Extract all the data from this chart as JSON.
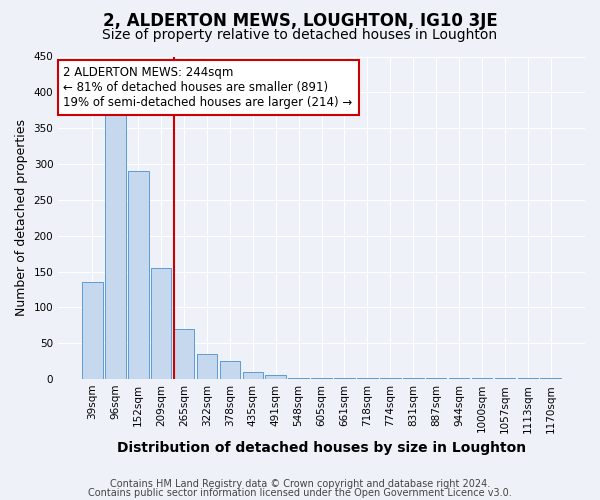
{
  "title": "2, ALDERTON MEWS, LOUGHTON, IG10 3JE",
  "subtitle": "Size of property relative to detached houses in Loughton",
  "xlabel": "Distribution of detached houses by size in Loughton",
  "ylabel": "Number of detached properties",
  "footnote1": "Contains HM Land Registry data © Crown copyright and database right 2024.",
  "footnote2": "Contains public sector information licensed under the Open Government Licence v3.0.",
  "bin_labels": [
    "39sqm",
    "96sqm",
    "152sqm",
    "209sqm",
    "265sqm",
    "322sqm",
    "378sqm",
    "435sqm",
    "491sqm",
    "548sqm",
    "605sqm",
    "661sqm",
    "718sqm",
    "774sqm",
    "831sqm",
    "887sqm",
    "944sqm",
    "1000sqm",
    "1057sqm",
    "1113sqm",
    "1170sqm"
  ],
  "bar_heights": [
    135,
    370,
    290,
    155,
    70,
    35,
    25,
    10,
    5,
    2,
    2,
    2,
    1,
    1,
    1,
    1,
    1,
    2,
    1,
    1,
    1
  ],
  "bar_color": "#c5d8ed",
  "bar_edge_color": "#5b9bd5",
  "red_line_bin_index": 4,
  "red_line_color": "#cc0000",
  "annotation_line1": "2 ALDERTON MEWS: 244sqm",
  "annotation_line2": "← 81% of detached houses are smaller (891)",
  "annotation_line3": "19% of semi-detached houses are larger (214) →",
  "annotation_box_color": "white",
  "annotation_box_edge_color": "#cc0000",
  "ylim": [
    0,
    450
  ],
  "title_fontsize": 12,
  "subtitle_fontsize": 10,
  "xlabel_fontsize": 10,
  "ylabel_fontsize": 9,
  "tick_fontsize": 7.5,
  "annotation_fontsize": 8.5,
  "footnote_fontsize": 7,
  "background_color": "#eef2f8"
}
